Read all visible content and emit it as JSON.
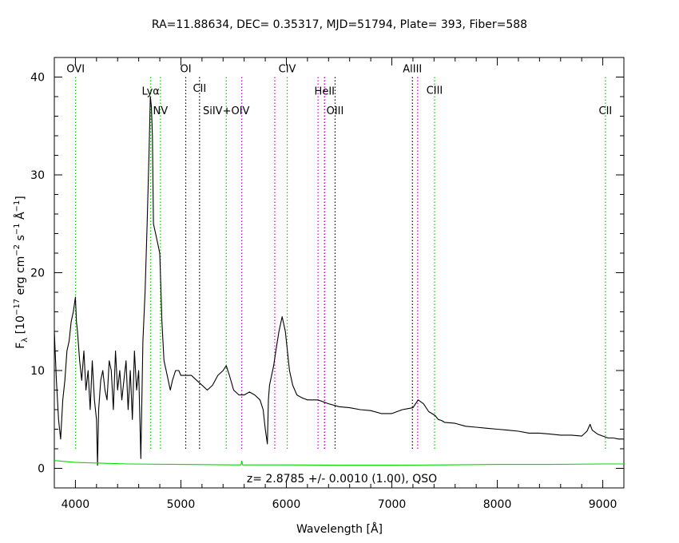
{
  "chart_data": {
    "type": "line",
    "title": "RA=11.88634, DEC= 0.35317, MJD=51794, Plate= 393, Fiber=588",
    "xlabel": "Wavelength [Å]",
    "ylabel": "F_λ [10^-17 erg cm^-2 s^-1 Å^-1]",
    "xlim": [
      3800,
      9200
    ],
    "ylim": [
      -2,
      42
    ],
    "x_ticks": [
      4000,
      5000,
      6000,
      7000,
      8000,
      9000
    ],
    "y_ticks": [
      0,
      10,
      20,
      30,
      40
    ],
    "redshift_annotation": "z= 2.8785 +/- 0.0010 (1.00), QSO",
    "emission_lines": [
      {
        "name": "OVI",
        "x": 4002,
        "color": "#00cc00",
        "label_y": 40.5
      },
      {
        "name": "Lyα",
        "x": 4714,
        "color": "#00cc00",
        "label_y": 38.2
      },
      {
        "name": "NV",
        "x": 4806,
        "color": "#00cc00",
        "label_y": 36.2
      },
      {
        "name": "OI",
        "x": 5046,
        "color": "#000000",
        "label_y": 40.5
      },
      {
        "name": "CII",
        "x": 5177,
        "color": "#000000",
        "label_y": 38.5
      },
      {
        "name": "SiIV+OIV",
        "x": 5430,
        "color": "#00cc00",
        "label_y": 36.2
      },
      {
        "name": "",
        "x": 5577,
        "color": "#cc00cc",
        "label_y": 0
      },
      {
        "name": "",
        "x": 5890,
        "color": "#cc00cc",
        "label_y": 0
      },
      {
        "name": "CIV",
        "x": 6008,
        "color": "#00cc00",
        "label_y": 40.5
      },
      {
        "name": "",
        "x": 6300,
        "color": "#cc00cc",
        "label_y": 0
      },
      {
        "name": "HeII",
        "x": 6362,
        "color": "#000000",
        "label_y": 38.2
      },
      {
        "name": "",
        "x": 6364,
        "color": "#cc00cc",
        "label_y": 0
      },
      {
        "name": "OIII",
        "x": 6462,
        "color": "#000000",
        "label_y": 36.2
      },
      {
        "name": "AlIII",
        "x": 7195,
        "color": "#000000",
        "label_y": 40.5
      },
      {
        "name": "",
        "x": 7245,
        "color": "#cc00cc",
        "label_y": 0
      },
      {
        "name": "CIII",
        "x": 7405,
        "color": "#00cc00",
        "label_y": 38.3
      },
      {
        "name": "CII",
        "x": 9025,
        "color": "#00cc00",
        "label_y": 36.2
      }
    ],
    "series": [
      {
        "color": "#000000",
        "x": [
          3800,
          3820,
          3840,
          3860,
          3880,
          3900,
          3920,
          3940,
          3960,
          3980,
          4000,
          4010,
          4020,
          4040,
          4060,
          4080,
          4100,
          4120,
          4140,
          4160,
          4180,
          4200,
          4210,
          4220,
          4240,
          4260,
          4280,
          4300,
          4320,
          4340,
          4360,
          4380,
          4400,
          4420,
          4440,
          4460,
          4480,
          4500,
          4520,
          4540,
          4560,
          4580,
          4600,
          4620,
          4640,
          4660,
          4680,
          4700,
          4710,
          4720,
          4730,
          4740,
          4760,
          4780,
          4800,
          4820,
          4840,
          4860,
          4880,
          4900,
          4920,
          4950,
          4980,
          5000,
          5050,
          5100,
          5150,
          5200,
          5250,
          5300,
          5350,
          5400,
          5430,
          5460,
          5500,
          5550,
          5600,
          5650,
          5700,
          5750,
          5780,
          5800,
          5820,
          5830,
          5840,
          5860,
          5880,
          5900,
          5930,
          5960,
          5990,
          6010,
          6030,
          6060,
          6100,
          6150,
          6200,
          6300,
          6400,
          6500,
          6600,
          6700,
          6800,
          6900,
          7000,
          7100,
          7200,
          7250,
          7300,
          7350,
          7380,
          7410,
          7440,
          7470,
          7500,
          7600,
          7700,
          7800,
          7900,
          8000,
          8100,
          8200,
          8300,
          8400,
          8500,
          8600,
          8700,
          8800,
          8850,
          8880,
          8900,
          8950,
          9000,
          9050,
          9100,
          9150,
          9200
        ],
        "y": [
          14,
          9,
          5,
          3,
          7,
          9,
          12,
          13,
          15,
          16,
          17.5,
          15,
          14,
          11,
          9,
          12,
          8,
          10,
          6,
          11,
          7,
          5,
          0.3,
          6,
          9,
          10,
          8,
          7,
          11,
          10,
          6,
          12,
          8,
          10,
          7,
          9,
          11,
          6,
          10,
          5,
          12,
          8,
          10,
          1,
          13,
          18,
          25,
          33,
          38,
          37,
          34,
          25,
          24,
          23,
          22,
          15,
          11,
          10,
          9,
          8,
          9,
          10,
          10,
          9.5,
          9.5,
          9.5,
          9,
          8.5,
          8,
          8.5,
          9.5,
          10,
          10.5,
          9.5,
          8,
          7.5,
          7.5,
          7.8,
          7.5,
          7,
          6,
          4,
          2.5,
          7,
          8.5,
          9.5,
          10.5,
          12,
          14,
          15.5,
          14,
          12,
          10,
          8.5,
          7.5,
          7.2,
          7,
          7,
          6.6,
          6.3,
          6.2,
          6,
          5.9,
          5.6,
          5.6,
          6,
          6.2,
          7,
          6.6,
          5.8,
          5.6,
          5.4,
          5,
          4.9,
          4.7,
          4.6,
          4.3,
          4.2,
          4.1,
          4,
          3.9,
          3.8,
          3.6,
          3.6,
          3.5,
          3.4,
          3.4,
          3.3,
          3.8,
          4.5,
          3.9,
          3.5,
          3.3,
          3.1,
          3.1,
          3,
          3
        ]
      },
      {
        "color": "#00dd00",
        "x": [
          3800,
          4000,
          4500,
          5000,
          5500,
          5570,
          5577,
          5585,
          6000,
          6500,
          7000,
          7500,
          8000,
          8500,
          9000,
          9200
        ],
        "y": [
          0.8,
          0.6,
          0.45,
          0.4,
          0.35,
          0.35,
          0.75,
          0.35,
          0.35,
          0.32,
          0.32,
          0.35,
          0.4,
          0.4,
          0.45,
          0.45
        ]
      }
    ]
  }
}
